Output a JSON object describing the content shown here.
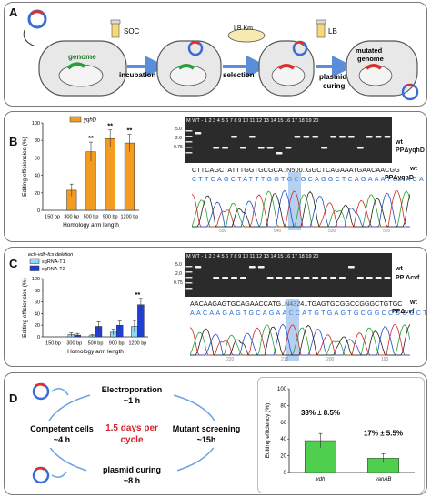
{
  "panelA": {
    "label": "A",
    "genome": "genome",
    "soc": "SOC",
    "incubation": "incubation",
    "lb_km": "LB Km",
    "selection": "selection",
    "lb": "LB",
    "plasmid_curing": "plasmid\ncuring",
    "mutated_genome": "mutated\ngenome"
  },
  "panelB": {
    "label": "B",
    "legend": "yqhD",
    "gel_header": "M WT -  1  2  3  4  5  6  7  8  9  10  11  12  13  14  15  16  17  18  19  20",
    "ladder_top": "5.0",
    "ladder_mid": "2.0",
    "ladder_bot": "0.75",
    "wt_tag": "wt",
    "mut_tag": "PPΔyqhD",
    "seq1": "CTTCAGCTATTTGGTGCGCA..N500..GGCTCAGAAATGAACAACGG",
    "seq1_tag": "wt",
    "seq2": "CTTCAGCTATTTGGTGCGCAGGCTCAGAAATGAACAACGG",
    "seq2_tag": "PPΔyqhD",
    "chrom_ticks": [
      "550",
      "540",
      "530",
      "520"
    ]
  },
  "panelC": {
    "label": "C",
    "legend_title": "ech-vdh-fcs deletion",
    "gel_header": "M WT -  1  2  3  4  5  6  7  8  9  10  11  12  13  14  15  16  17  18  19  20",
    "ladder_top": "5.0",
    "ladder_mid": "2.0",
    "ladder_bot": "0.75",
    "wt_tag": "wt",
    "mut_tag": "PP Δcvf",
    "seq1": "AACAAGAGTGCAGAACCATG..N4324..TGAGTGCGGCCGGGCTGTGC",
    "seq1_tag": "wt",
    "seq2": "AACAAGAGTGCAGAACCATGTGAGTGCGGCCGGGCTGTGC",
    "seq2_tag": "PPΔcvf",
    "chrom_ticks": [
      "220",
      "210",
      "200",
      "190"
    ]
  },
  "panelD": {
    "label": "D",
    "electroporation": "Electroporation",
    "electro_time": "~1 h",
    "competent": "Competent cells",
    "competent_time": "~4 h",
    "center1": "1.5 days per",
    "center2": "cycle",
    "mutant": "Mutant screening",
    "mutant_time": "~15h",
    "curing": "plasmid curing",
    "curing_time": "~8 h"
  },
  "chart_data": [
    {
      "type": "bar",
      "panel": "B",
      "categories": [
        "150 bp",
        "300 bp",
        "500 bp",
        "900 bp",
        "1200 bp"
      ],
      "series": [
        {
          "name": "yqhD",
          "values": [
            0,
            23,
            67,
            82,
            77
          ],
          "errors": [
            0,
            7,
            11,
            10,
            10
          ]
        }
      ],
      "significance": [
        "",
        "",
        "**",
        "**",
        "**"
      ],
      "xlabel": "Homology arm length",
      "ylabel": "Editing efficiencies (%)",
      "ylim": [
        0,
        100
      ],
      "yticks": [
        0,
        20,
        40,
        60,
        80,
        100
      ],
      "color": "#f39c1f"
    },
    {
      "type": "bar",
      "panel": "C",
      "title": "ech-vdh-fcs deletion",
      "categories": [
        "150 bp",
        "300 bp",
        "500 bp",
        "900 bp",
        "1200 bp"
      ],
      "series": [
        {
          "name": "sgRNA-T1",
          "values": [
            0,
            4,
            2,
            8,
            18
          ],
          "errors": [
            0,
            3,
            2,
            5,
            10
          ],
          "color": "#8fd8f2"
        },
        {
          "name": "sgRNA-T2",
          "values": [
            0,
            3,
            18,
            20,
            55
          ],
          "errors": [
            0,
            3,
            8,
            7,
            11
          ],
          "color": "#1f3fd8"
        }
      ],
      "significance": [
        "",
        "",
        "",
        "",
        "**"
      ],
      "xlabel": "Homology arm length",
      "ylabel": "Editing efficiencies (%)",
      "ylim": [
        0,
        100
      ],
      "yticks": [
        0,
        20,
        40,
        60,
        80,
        100
      ]
    },
    {
      "type": "bar",
      "panel": "D",
      "categories": [
        "vdh",
        "vanAB"
      ],
      "values": [
        38,
        17
      ],
      "errors": [
        8.5,
        5.5
      ],
      "value_labels": [
        "38% ± 8.5%",
        "17% ± 5.5%"
      ],
      "ylabel": "Editing efficiency (%)",
      "ylim": [
        0,
        100
      ],
      "yticks": [
        0,
        20,
        40,
        60,
        80,
        100
      ],
      "color": "#4ecf4e"
    }
  ]
}
